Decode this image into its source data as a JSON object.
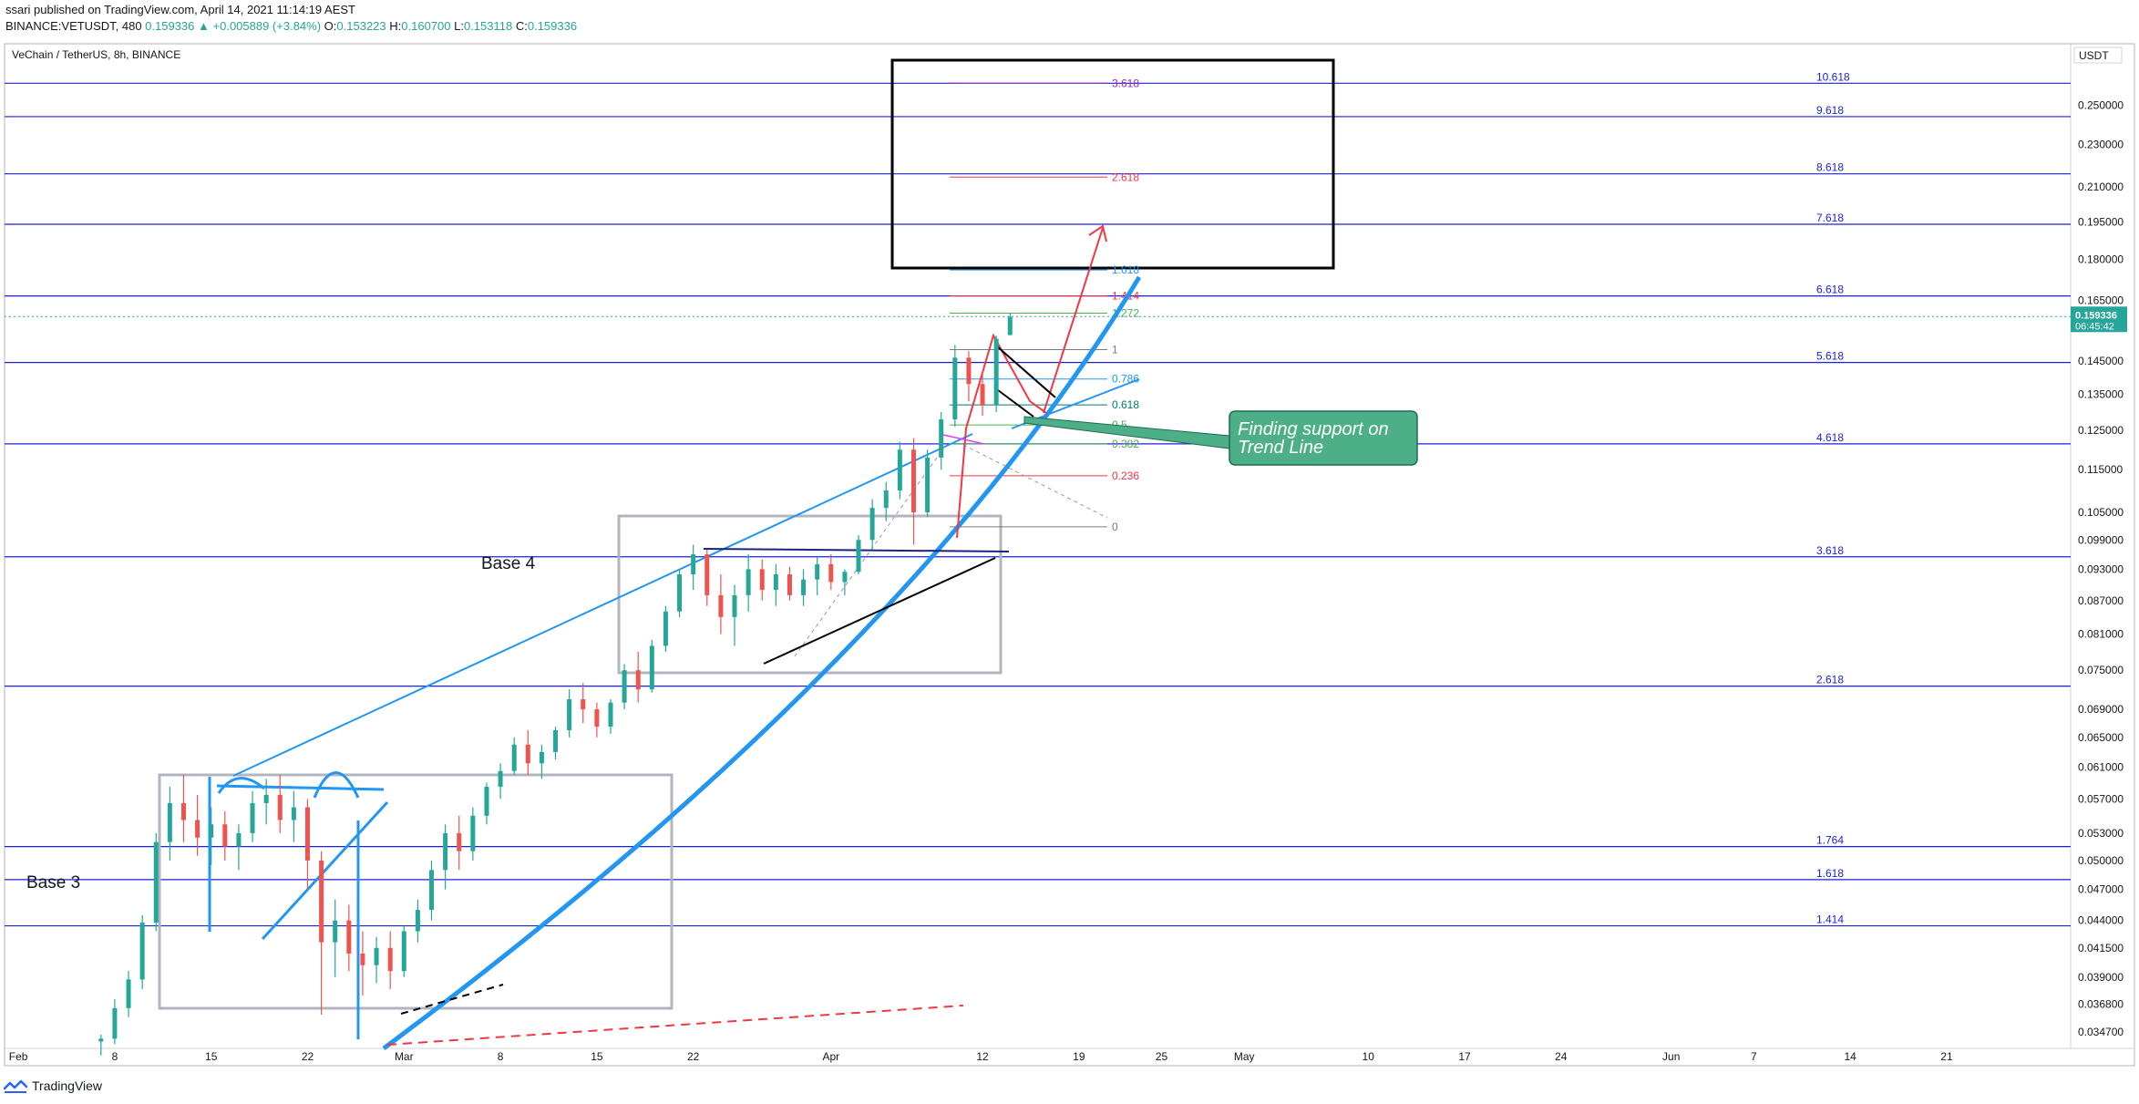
{
  "publish_line": "ssari published on TradingView.com, April 14, 2021 11:14:19 AEST",
  "quote_line": {
    "symbol_tf": "BINANCE:VETUSDT, 480",
    "last": "0.159336",
    "change": "▲ +0.005889 (+3.84%)",
    "o_label": "O:",
    "o_value": "0.153223",
    "h_label": "H:",
    "h_value": "0.160700",
    "l_label": "L:",
    "l_value": "0.153118",
    "c_label": "C:",
    "c_value": "0.159336"
  },
  "footer_brand": "TradingView",
  "chart_data": {
    "type": "candlestick",
    "title": "VeChain / TetherUS, 8h, BINANCE",
    "currency_badge": "USDT",
    "scale": "log",
    "ylim": [
      0.0335,
      0.285
    ],
    "x_start": "2021-01-31",
    "x_end": "2021-06-30",
    "y_ticks": [
      "0.250000",
      "0.230000",
      "0.210000",
      "0.195000",
      "0.180000",
      "0.165000",
      "0.145000",
      "0.135000",
      "0.125000",
      "0.115000",
      "0.105000",
      "0.099000",
      "0.093000",
      "0.087000",
      "0.081000",
      "0.075000",
      "0.069000",
      "0.065000",
      "0.061000",
      "0.057000",
      "0.053000",
      "0.050000",
      "0.047000",
      "0.044000",
      "0.041500",
      "0.039000",
      "0.036800",
      "0.034700"
    ],
    "y_tick_values": [
      0.25,
      0.23,
      0.21,
      0.195,
      0.18,
      0.165,
      0.145,
      0.135,
      0.125,
      0.115,
      0.105,
      0.099,
      0.093,
      0.087,
      0.081,
      0.075,
      0.069,
      0.065,
      0.061,
      0.057,
      0.053,
      0.05,
      0.047,
      0.044,
      0.0415,
      0.039,
      0.0368,
      0.0347
    ],
    "x_ticks": [
      {
        "label": "Feb",
        "date": "2021-02-01"
      },
      {
        "label": "8",
        "date": "2021-02-08"
      },
      {
        "label": "15",
        "date": "2021-02-15"
      },
      {
        "label": "22",
        "date": "2021-02-22"
      },
      {
        "label": "Mar",
        "date": "2021-03-01"
      },
      {
        "label": "8",
        "date": "2021-03-08"
      },
      {
        "label": "15",
        "date": "2021-03-15"
      },
      {
        "label": "22",
        "date": "2021-03-22"
      },
      {
        "label": "Apr",
        "date": "2021-04-01"
      },
      {
        "label": "12",
        "date": "2021-04-12"
      },
      {
        "label": "19",
        "date": "2021-04-19"
      },
      {
        "label": "25",
        "date": "2021-04-25"
      },
      {
        "label": "May",
        "date": "2021-05-01"
      },
      {
        "label": "10",
        "date": "2021-05-10"
      },
      {
        "label": "17",
        "date": "2021-05-17"
      },
      {
        "label": "24",
        "date": "2021-05-24"
      },
      {
        "label": "Jun",
        "date": "2021-06-01"
      },
      {
        "label": "7",
        "date": "2021-06-07"
      },
      {
        "label": "14",
        "date": "2021-06-14"
      },
      {
        "label": "21",
        "date": "2021-06-21"
      }
    ],
    "price_label": {
      "value": "0.159336",
      "countdown": "06:45:42"
    },
    "hlines": [
      {
        "label": "10.618",
        "value": 0.262
      },
      {
        "label": "9.618",
        "value": 0.244
      },
      {
        "label": "8.618",
        "value": 0.216
      },
      {
        "label": "7.618",
        "value": 0.194
      },
      {
        "label": "6.618",
        "value": 0.1665
      },
      {
        "label": "5.618",
        "value": 0.1445
      },
      {
        "label": "4.618",
        "value": 0.1215
      },
      {
        "label": "3.618",
        "value": 0.0955
      },
      {
        "label": "2.618",
        "value": 0.0725
      },
      {
        "label": "1.764",
        "value": 0.0515
      },
      {
        "label": "1.618",
        "value": 0.048
      },
      {
        "label": "1.414",
        "value": 0.0435
      }
    ],
    "fib_levels": [
      {
        "label": "3.618",
        "value": 0.262,
        "color": "#9c27b0"
      },
      {
        "label": "2.618",
        "value": 0.2145,
        "color": "#f23645"
      },
      {
        "label": "1.618",
        "value": 0.176,
        "color": "#2196f3"
      },
      {
        "label": "1.414",
        "value": 0.1665,
        "color": "#f23645"
      },
      {
        "label": "1.272",
        "value": 0.1605,
        "color": "#4caf50"
      },
      {
        "label": "1",
        "value": 0.1485,
        "color": "#787b86"
      },
      {
        "label": "0.786",
        "value": 0.1395,
        "color": "#2196f3"
      },
      {
        "label": "0.618",
        "value": 0.132,
        "color": "#00796b"
      },
      {
        "label": "0.5",
        "value": 0.1265,
        "color": "#4caf50"
      },
      {
        "label": "0.382",
        "value": 0.1215,
        "color": "#4caf50"
      },
      {
        "label": "0.236",
        "value": 0.1135,
        "color": "#f23645"
      },
      {
        "label": "0",
        "value": 0.1018,
        "color": "#787b86"
      }
    ],
    "annotations": [
      {
        "text": "Base 4"
      },
      {
        "text": "Base 3"
      },
      {
        "text": "Finding support on Trend Line"
      }
    ],
    "series": [
      {
        "date": "2021-02-07",
        "o": 0.034,
        "h": 0.0345,
        "l": 0.033,
        "c": 0.0342
      },
      {
        "date": "2021-02-08",
        "o": 0.0342,
        "h": 0.0372,
        "l": 0.0338,
        "c": 0.0365
      },
      {
        "date": "2021-02-09",
        "o": 0.0365,
        "h": 0.0395,
        "l": 0.0358,
        "c": 0.0388
      },
      {
        "date": "2021-02-10",
        "o": 0.0388,
        "h": 0.0445,
        "l": 0.038,
        "c": 0.0438
      },
      {
        "date": "2021-02-11",
        "o": 0.0438,
        "h": 0.053,
        "l": 0.043,
        "c": 0.052
      },
      {
        "date": "2021-02-12",
        "o": 0.052,
        "h": 0.0585,
        "l": 0.05,
        "c": 0.0565
      },
      {
        "date": "2021-02-13",
        "o": 0.0565,
        "h": 0.06,
        "l": 0.052,
        "c": 0.0545
      },
      {
        "date": "2021-02-14",
        "o": 0.0545,
        "h": 0.0575,
        "l": 0.0505,
        "c": 0.0525
      },
      {
        "date": "2021-02-15",
        "o": 0.0525,
        "h": 0.056,
        "l": 0.0495,
        "c": 0.054
      },
      {
        "date": "2021-02-16",
        "o": 0.054,
        "h": 0.0555,
        "l": 0.05,
        "c": 0.0515
      },
      {
        "date": "2021-02-17",
        "o": 0.0515,
        "h": 0.054,
        "l": 0.049,
        "c": 0.053
      },
      {
        "date": "2021-02-18",
        "o": 0.053,
        "h": 0.058,
        "l": 0.052,
        "c": 0.0565
      },
      {
        "date": "2021-02-19",
        "o": 0.0565,
        "h": 0.0595,
        "l": 0.054,
        "c": 0.0575
      },
      {
        "date": "2021-02-20",
        "o": 0.0575,
        "h": 0.06,
        "l": 0.053,
        "c": 0.0545
      },
      {
        "date": "2021-02-21",
        "o": 0.0545,
        "h": 0.058,
        "l": 0.052,
        "c": 0.056
      },
      {
        "date": "2021-02-22",
        "o": 0.056,
        "h": 0.057,
        "l": 0.047,
        "c": 0.05
      },
      {
        "date": "2021-02-23",
        "o": 0.05,
        "h": 0.051,
        "l": 0.036,
        "c": 0.042
      },
      {
        "date": "2021-02-24",
        "o": 0.042,
        "h": 0.046,
        "l": 0.039,
        "c": 0.044
      },
      {
        "date": "2021-02-25",
        "o": 0.044,
        "h": 0.0455,
        "l": 0.0395,
        "c": 0.041
      },
      {
        "date": "2021-02-26",
        "o": 0.041,
        "h": 0.043,
        "l": 0.0375,
        "c": 0.04
      },
      {
        "date": "2021-02-27",
        "o": 0.04,
        "h": 0.0425,
        "l": 0.0385,
        "c": 0.0415
      },
      {
        "date": "2021-02-28",
        "o": 0.0415,
        "h": 0.043,
        "l": 0.038,
        "c": 0.0395
      },
      {
        "date": "2021-03-01",
        "o": 0.0395,
        "h": 0.0435,
        "l": 0.039,
        "c": 0.043
      },
      {
        "date": "2021-03-02",
        "o": 0.043,
        "h": 0.046,
        "l": 0.042,
        "c": 0.045
      },
      {
        "date": "2021-03-03",
        "o": 0.045,
        "h": 0.05,
        "l": 0.044,
        "c": 0.049
      },
      {
        "date": "2021-03-04",
        "o": 0.049,
        "h": 0.054,
        "l": 0.047,
        "c": 0.053
      },
      {
        "date": "2021-03-05",
        "o": 0.053,
        "h": 0.055,
        "l": 0.049,
        "c": 0.051
      },
      {
        "date": "2021-03-06",
        "o": 0.051,
        "h": 0.056,
        "l": 0.05,
        "c": 0.055
      },
      {
        "date": "2021-03-07",
        "o": 0.055,
        "h": 0.059,
        "l": 0.054,
        "c": 0.0585
      },
      {
        "date": "2021-03-08",
        "o": 0.0585,
        "h": 0.0615,
        "l": 0.057,
        "c": 0.0605
      },
      {
        "date": "2021-03-09",
        "o": 0.0605,
        "h": 0.065,
        "l": 0.06,
        "c": 0.064
      },
      {
        "date": "2021-03-10",
        "o": 0.064,
        "h": 0.066,
        "l": 0.06,
        "c": 0.0615
      },
      {
        "date": "2021-03-11",
        "o": 0.0615,
        "h": 0.064,
        "l": 0.0595,
        "c": 0.063
      },
      {
        "date": "2021-03-12",
        "o": 0.063,
        "h": 0.0665,
        "l": 0.062,
        "c": 0.066
      },
      {
        "date": "2021-03-13",
        "o": 0.066,
        "h": 0.072,
        "l": 0.065,
        "c": 0.0705
      },
      {
        "date": "2021-03-14",
        "o": 0.0705,
        "h": 0.073,
        "l": 0.067,
        "c": 0.069
      },
      {
        "date": "2021-03-15",
        "o": 0.069,
        "h": 0.07,
        "l": 0.065,
        "c": 0.0665
      },
      {
        "date": "2021-03-16",
        "o": 0.0665,
        "h": 0.0705,
        "l": 0.0655,
        "c": 0.07
      },
      {
        "date": "2021-03-17",
        "o": 0.07,
        "h": 0.076,
        "l": 0.069,
        "c": 0.075
      },
      {
        "date": "2021-03-18",
        "o": 0.075,
        "h": 0.078,
        "l": 0.07,
        "c": 0.072
      },
      {
        "date": "2021-03-19",
        "o": 0.072,
        "h": 0.08,
        "l": 0.0715,
        "c": 0.079
      },
      {
        "date": "2021-03-20",
        "o": 0.079,
        "h": 0.086,
        "l": 0.078,
        "c": 0.085
      },
      {
        "date": "2021-03-21",
        "o": 0.085,
        "h": 0.093,
        "l": 0.084,
        "c": 0.092
      },
      {
        "date": "2021-03-22",
        "o": 0.092,
        "h": 0.098,
        "l": 0.089,
        "c": 0.096
      },
      {
        "date": "2021-03-23",
        "o": 0.096,
        "h": 0.097,
        "l": 0.086,
        "c": 0.088
      },
      {
        "date": "2021-03-24",
        "o": 0.088,
        "h": 0.092,
        "l": 0.081,
        "c": 0.084
      },
      {
        "date": "2021-03-25",
        "o": 0.084,
        "h": 0.09,
        "l": 0.079,
        "c": 0.088
      },
      {
        "date": "2021-03-26",
        "o": 0.088,
        "h": 0.096,
        "l": 0.085,
        "c": 0.093
      },
      {
        "date": "2021-03-27",
        "o": 0.093,
        "h": 0.095,
        "l": 0.087,
        "c": 0.089
      },
      {
        "date": "2021-03-28",
        "o": 0.089,
        "h": 0.094,
        "l": 0.086,
        "c": 0.092
      },
      {
        "date": "2021-03-29",
        "o": 0.092,
        "h": 0.0935,
        "l": 0.087,
        "c": 0.088
      },
      {
        "date": "2021-03-30",
        "o": 0.088,
        "h": 0.093,
        "l": 0.086,
        "c": 0.091
      },
      {
        "date": "2021-03-31",
        "o": 0.091,
        "h": 0.0955,
        "l": 0.088,
        "c": 0.094
      },
      {
        "date": "2021-04-01",
        "o": 0.094,
        "h": 0.096,
        "l": 0.089,
        "c": 0.0905
      },
      {
        "date": "2021-04-02",
        "o": 0.0905,
        "h": 0.093,
        "l": 0.088,
        "c": 0.0925
      },
      {
        "date": "2021-04-03",
        "o": 0.0925,
        "h": 0.1,
        "l": 0.092,
        "c": 0.099
      },
      {
        "date": "2021-04-04",
        "o": 0.099,
        "h": 0.108,
        "l": 0.097,
        "c": 0.106
      },
      {
        "date": "2021-04-05",
        "o": 0.106,
        "h": 0.112,
        "l": 0.103,
        "c": 0.11
      },
      {
        "date": "2021-04-06",
        "o": 0.11,
        "h": 0.122,
        "l": 0.108,
        "c": 0.12
      },
      {
        "date": "2021-04-07",
        "o": 0.12,
        "h": 0.123,
        "l": 0.098,
        "c": 0.105
      },
      {
        "date": "2021-04-08",
        "o": 0.105,
        "h": 0.12,
        "l": 0.104,
        "c": 0.118
      },
      {
        "date": "2021-04-09",
        "o": 0.118,
        "h": 0.13,
        "l": 0.115,
        "c": 0.128
      },
      {
        "date": "2021-04-10",
        "o": 0.128,
        "h": 0.15,
        "l": 0.126,
        "c": 0.146
      },
      {
        "date": "2021-04-11",
        "o": 0.146,
        "h": 0.148,
        "l": 0.133,
        "c": 0.138
      },
      {
        "date": "2021-04-12",
        "o": 0.138,
        "h": 0.142,
        "l": 0.129,
        "c": 0.132
      },
      {
        "date": "2021-04-13",
        "o": 0.132,
        "h": 0.153,
        "l": 0.13,
        "c": 0.152
      },
      {
        "date": "2021-04-14",
        "o": 0.1532,
        "h": 0.1607,
        "l": 0.1531,
        "c": 0.1593
      }
    ]
  }
}
